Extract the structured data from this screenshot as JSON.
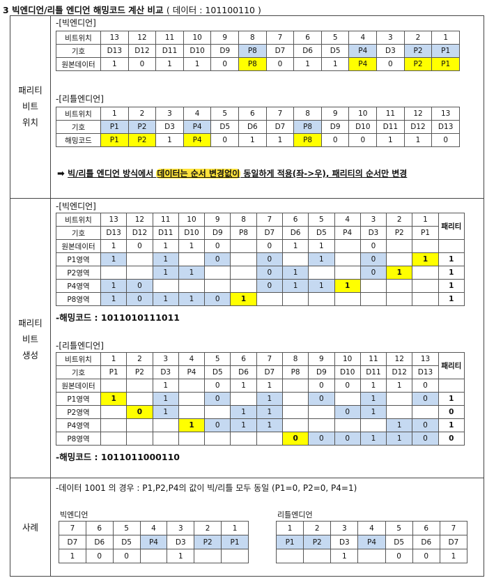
{
  "title": {
    "number": "3",
    "main": "빅엔디언/리틀 엔디언 해밍코드 계산 비교",
    "paren": "( 데이터 : 101100110 )"
  },
  "rows": {
    "position": [
      "패리티",
      "비트",
      "위치"
    ],
    "generation": [
      "패리티",
      "비트",
      "생성"
    ],
    "example": "사례"
  },
  "pos_big": {
    "caption": "-[빅엔디언]",
    "labels": [
      "비트위치",
      "기호",
      "원본데이터"
    ],
    "positions": [
      "13",
      "12",
      "11",
      "10",
      "9",
      "8",
      "7",
      "6",
      "5",
      "4",
      "3",
      "2",
      "1"
    ],
    "symbols": [
      "D13",
      "D12",
      "D11",
      "D10",
      "D9",
      "P8",
      "D7",
      "D6",
      "D5",
      "P4",
      "D3",
      "P2",
      "P1"
    ],
    "data": [
      "1",
      "0",
      "1",
      "1",
      "0",
      "P8",
      "0",
      "1",
      "1",
      "P4",
      "0",
      "P2",
      "P1"
    ]
  },
  "pos_little": {
    "caption": "-[리틀엔디언]",
    "labels": [
      "비트위치",
      "기호",
      "해밍코드"
    ],
    "positions": [
      "1",
      "2",
      "3",
      "4",
      "5",
      "6",
      "7",
      "8",
      "9",
      "10",
      "11",
      "12",
      "13"
    ],
    "symbols": [
      "P1",
      "P2",
      "D3",
      "P4",
      "D5",
      "D6",
      "D7",
      "P8",
      "D9",
      "D10",
      "D11",
      "D12",
      "D13"
    ],
    "data": [
      "P1",
      "P2",
      "1",
      "P4",
      "0",
      "1",
      "1",
      "P8",
      "0",
      "0",
      "1",
      "1",
      "0"
    ]
  },
  "note": {
    "arrow": "➡",
    "text_a": "빅/리틀 엔디언 방식에서 ",
    "text_hi": "데이터는 순서 변경없이",
    "text_b": " 동일하게 적용(좌->우), 패리티의 순서만 변경"
  },
  "gen_big": {
    "caption": "-[빅엔디언]",
    "parity_header": "패리티",
    "labels": [
      "비트위치",
      "기호",
      "원본데이터",
      "P1영역",
      "P2영역",
      "P4영역",
      "P8영역"
    ],
    "positions": [
      "13",
      "12",
      "11",
      "10",
      "9",
      "8",
      "7",
      "6",
      "5",
      "4",
      "3",
      "2",
      "1"
    ],
    "symbols": [
      "D13",
      "D12",
      "D11",
      "D10",
      "D9",
      "P8",
      "D7",
      "D6",
      "D5",
      "P4",
      "D3",
      "P2",
      "P1"
    ],
    "data": [
      "1",
      "0",
      "1",
      "1",
      "0",
      "",
      "0",
      "1",
      "1",
      "",
      "0",
      "",
      ""
    ],
    "groups": [
      {
        "cells": [
          "1",
          "",
          "1",
          "",
          "0",
          "",
          "0",
          "",
          "1",
          "",
          "0",
          "",
          "1"
        ],
        "parity": "1"
      },
      {
        "cells": [
          "",
          "",
          "1",
          "1",
          "",
          "",
          "0",
          "1",
          "",
          "",
          "0",
          "1",
          ""
        ],
        "parity": "1"
      },
      {
        "cells": [
          "1",
          "0",
          "",
          "",
          "",
          "",
          "0",
          "1",
          "1",
          "1",
          "",
          "",
          ""
        ],
        "parity": "1"
      },
      {
        "cells": [
          "1",
          "0",
          "1",
          "1",
          "0",
          "1",
          "",
          "",
          "",
          "",
          "",
          "",
          ""
        ],
        "parity": "1"
      }
    ],
    "result": "-해밍코드 : 1011010111011"
  },
  "gen_little": {
    "caption": "-[리틀엔디언]",
    "parity_header": "패리티",
    "labels": [
      "비트위치",
      "기호",
      "원본데이터",
      "P1영역",
      "P2영역",
      "P4영역",
      "P8영역"
    ],
    "positions": [
      "1",
      "2",
      "3",
      "4",
      "5",
      "6",
      "7",
      "8",
      "9",
      "10",
      "11",
      "12",
      "13"
    ],
    "symbols": [
      "P1",
      "P2",
      "D3",
      "P4",
      "D5",
      "D6",
      "D7",
      "P8",
      "D9",
      "D10",
      "D11",
      "D12",
      "D13"
    ],
    "data": [
      "",
      "",
      "1",
      "",
      "0",
      "1",
      "1",
      "",
      "0",
      "0",
      "1",
      "1",
      "0"
    ],
    "groups": [
      {
        "cells": [
          "1",
          "",
          "1",
          "",
          "0",
          "",
          "1",
          "",
          "0",
          "",
          "1",
          "",
          "0"
        ],
        "parity": "1"
      },
      {
        "cells": [
          "",
          "0",
          "1",
          "",
          "",
          "1",
          "1",
          "",
          "",
          "0",
          "1",
          "",
          ""
        ],
        "parity": "0"
      },
      {
        "cells": [
          "",
          "",
          "",
          "1",
          "0",
          "1",
          "1",
          "",
          "",
          "",
          "",
          "1",
          "0"
        ],
        "parity": "1"
      },
      {
        "cells": [
          "",
          "",
          "",
          "",
          "",
          "",
          "",
          "0",
          "0",
          "0",
          "1",
          "1",
          "0"
        ],
        "parity": "0"
      }
    ],
    "result": "-해밍코드 : 1011011000110"
  },
  "example": {
    "caption": "-데이터 1001 의 경우 : P1,P2,P4의 값이 빅/리틀 모두 동일 (P1=0, P2=0, P4=1)",
    "big": {
      "label": "빅엔디언",
      "positions": [
        "7",
        "6",
        "5",
        "4",
        "3",
        "2",
        "1"
      ],
      "symbols": [
        "D7",
        "D6",
        "D5",
        "P4",
        "D3",
        "P2",
        "P1"
      ],
      "data": [
        "1",
        "0",
        "0",
        "",
        "1",
        "",
        ""
      ]
    },
    "little": {
      "label": "리틀엔디언",
      "positions": [
        "1",
        "2",
        "3",
        "4",
        "5",
        "6",
        "7"
      ],
      "symbols": [
        "P1",
        "P2",
        "D3",
        "P4",
        "D5",
        "D6",
        "D7"
      ],
      "data": [
        "",
        "",
        "1",
        "",
        "0",
        "0",
        "1"
      ]
    }
  },
  "colors": {
    "highlight_blue": "#c5d9f1",
    "highlight_yellow": "#ffff00",
    "note_marker": "#ffe33a"
  }
}
